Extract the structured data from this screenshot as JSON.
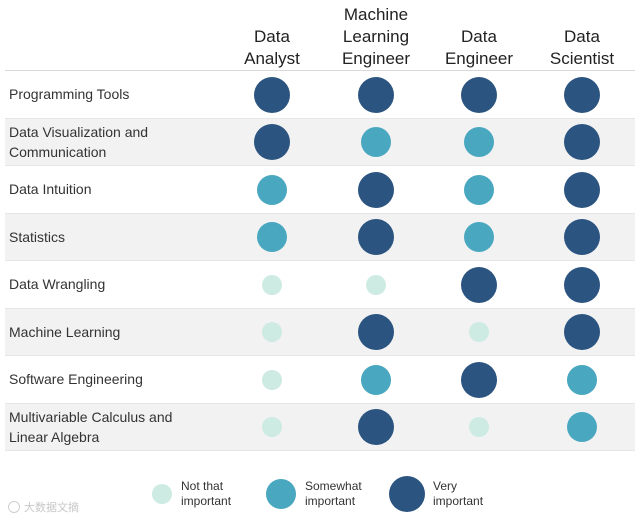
{
  "colors": {
    "very_important": "#2b5480",
    "somewhat_important": "#49a8bf",
    "not_that_important": "#cdebe2",
    "row_shade": "#f2f2f2"
  },
  "columns": [
    {
      "label": "Data\nAnalyst"
    },
    {
      "label": "Machine\nLearning\nEngineer"
    },
    {
      "label": "Data\nEngineer"
    },
    {
      "label": "Data\nScientist"
    }
  ],
  "rows": [
    {
      "label": "Programming Tools",
      "ratings": [
        "very",
        "very",
        "very",
        "very"
      ]
    },
    {
      "label": "Data Visualization and\nCommunication",
      "ratings": [
        "very",
        "somewhat",
        "somewhat",
        "very"
      ]
    },
    {
      "label": "Data Intuition",
      "ratings": [
        "somewhat",
        "very",
        "somewhat",
        "very"
      ]
    },
    {
      "label": "Statistics",
      "ratings": [
        "somewhat",
        "very",
        "somewhat",
        "very"
      ]
    },
    {
      "label": "Data Wrangling",
      "ratings": [
        "not",
        "not",
        "very",
        "very"
      ]
    },
    {
      "label": "Machine Learning",
      "ratings": [
        "not",
        "very",
        "not",
        "very"
      ]
    },
    {
      "label": "Software Engineering",
      "ratings": [
        "not",
        "somewhat",
        "very",
        "somewhat"
      ]
    },
    {
      "label": "Multivariable Calculus and\nLinear Algebra",
      "ratings": [
        "not",
        "very",
        "not",
        "somewhat"
      ]
    }
  ],
  "legend": [
    {
      "key": "not",
      "label": "Not that\nimportant"
    },
    {
      "key": "somewhat",
      "label": "Somewhat\nimportant"
    },
    {
      "key": "very",
      "label": "Very\nimportant"
    }
  ],
  "watermark": {
    "text": "大数据文摘"
  }
}
